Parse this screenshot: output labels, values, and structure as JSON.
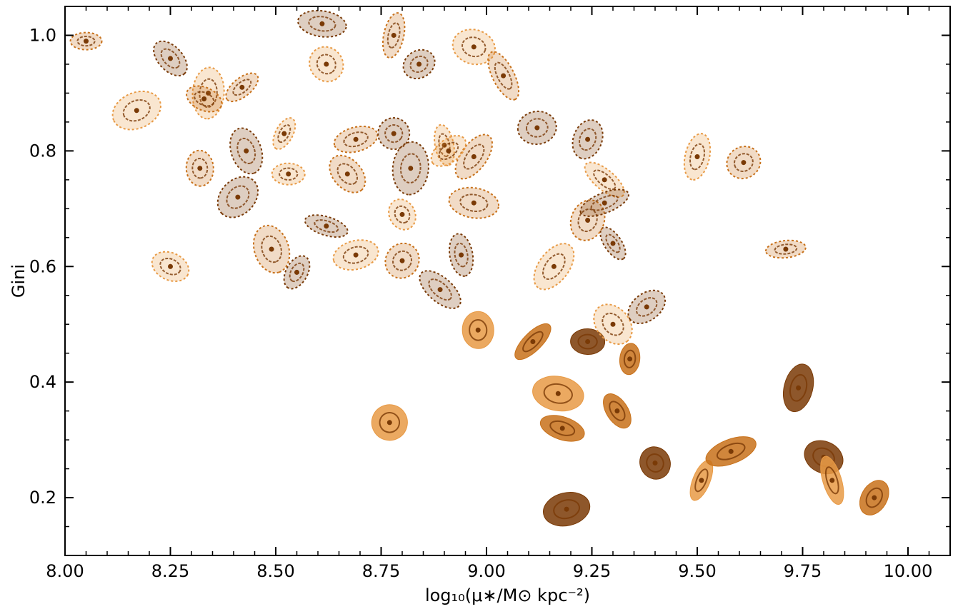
{
  "chart_data": {
    "type": "scatter",
    "marker": "galaxy-image",
    "x": [
      8.05,
      8.25,
      8.34,
      8.42,
      8.61,
      8.62,
      8.78,
      8.84,
      8.97,
      9.04,
      9.24,
      8.17,
      8.33,
      8.43,
      8.52,
      8.69,
      8.78,
      8.9,
      8.97,
      9.12,
      9.28,
      8.32,
      8.41,
      8.53,
      8.67,
      8.82,
      8.91,
      8.97,
      9.3,
      9.5,
      9.61,
      8.62,
      8.8,
      9.24,
      9.28,
      8.25,
      8.49,
      8.55,
      8.69,
      8.8,
      8.94,
      9.16,
      9.71,
      8.89,
      8.98,
      9.11,
      9.24,
      9.3,
      9.34,
      9.38,
      9.17,
      9.31,
      9.74,
      8.77,
      9.18,
      9.4,
      9.51,
      9.58,
      9.8,
      9.82,
      9.92,
      9.19
    ],
    "y": [
      0.99,
      0.96,
      0.9,
      0.91,
      1.02,
      0.95,
      1.0,
      0.95,
      0.98,
      0.93,
      0.82,
      0.87,
      0.89,
      0.8,
      0.83,
      0.82,
      0.83,
      0.81,
      0.79,
      0.84,
      0.75,
      0.77,
      0.72,
      0.76,
      0.76,
      0.77,
      0.8,
      0.71,
      0.64,
      0.79,
      0.78,
      0.67,
      0.69,
      0.68,
      0.71,
      0.6,
      0.63,
      0.59,
      0.62,
      0.61,
      0.62,
      0.6,
      0.63,
      0.56,
      0.49,
      0.47,
      0.47,
      0.5,
      0.44,
      0.53,
      0.38,
      0.35,
      0.39,
      0.33,
      0.32,
      0.26,
      0.23,
      0.28,
      0.27,
      0.23,
      0.2,
      0.18
    ],
    "xlabel": "log₁₀(μ∗/M⊙ kpc⁻²)",
    "ylabel": "Gini",
    "xlim": [
      8.0,
      10.1
    ],
    "ylim": [
      0.1,
      1.05
    ],
    "xticks": [
      "8.00",
      "8.25",
      "8.50",
      "8.75",
      "9.00",
      "9.25",
      "9.50",
      "9.75",
      "10.00"
    ],
    "yticks": [
      "0.2",
      "0.4",
      "0.6",
      "0.8",
      "1.0"
    ],
    "grid": false,
    "marker_color": "#c8711a",
    "marker_dark_color": "#7a3a06",
    "marker_light_color": "#e89a45"
  }
}
